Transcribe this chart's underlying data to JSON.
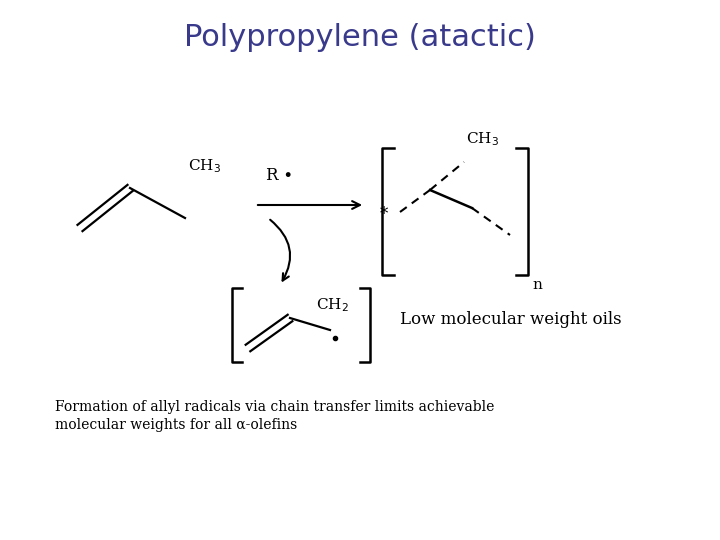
{
  "title": "Polypropylene (atactic)",
  "title_color": "#3A3A8C",
  "title_fontsize": 22,
  "bg_color": "#FFFFFF",
  "caption_line1": "Formation of allyl radicals via chain transfer limits achievable",
  "caption_line2": "molecular weights for all α-olefins",
  "caption_fontsize": 10,
  "caption_color": "#000000"
}
